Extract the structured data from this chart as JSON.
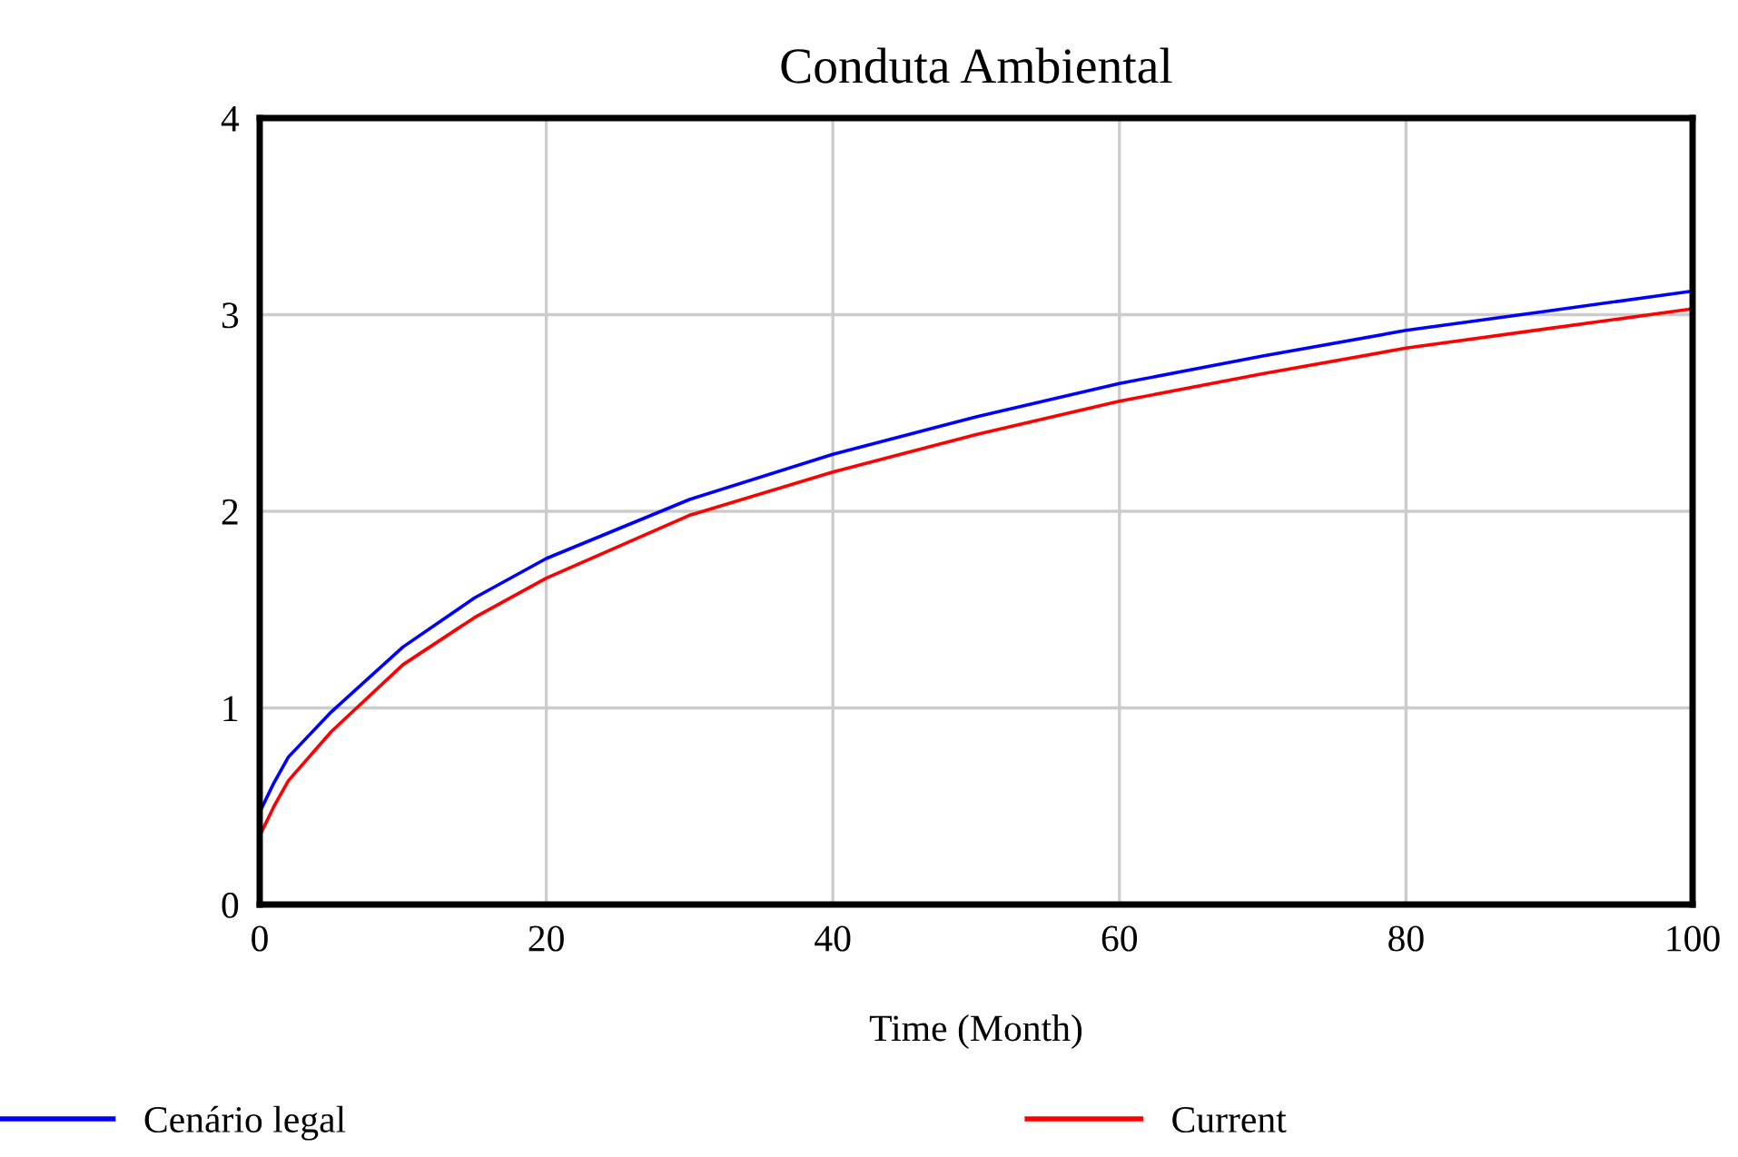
{
  "chart_data": {
    "type": "line",
    "title": "Conduta Ambiental",
    "xlabel": "Time (Month)",
    "x": [
      0,
      1,
      2,
      5,
      10,
      15,
      20,
      30,
      40,
      50,
      60,
      70,
      80,
      90,
      100
    ],
    "series": [
      {
        "name": "Cenário legal",
        "color": "#0000ff",
        "values": [
          0.47,
          0.62,
          0.75,
          0.98,
          1.31,
          1.56,
          1.76,
          2.06,
          2.29,
          2.48,
          2.65,
          2.79,
          2.92,
          3.02,
          3.12
        ]
      },
      {
        "name": "Current",
        "color": "#ff0000",
        "values": [
          0.35,
          0.5,
          0.63,
          0.88,
          1.22,
          1.46,
          1.66,
          1.98,
          2.2,
          2.39,
          2.56,
          2.7,
          2.83,
          2.93,
          3.03
        ]
      }
    ],
    "xlim": [
      0,
      100
    ],
    "xticks": [
      0,
      20,
      40,
      60,
      80,
      100
    ],
    "ylim": [
      0,
      4
    ],
    "yticks": [
      0,
      1,
      2,
      3,
      4
    ],
    "grid": true,
    "legend": "bottom",
    "line_style": "solid"
  }
}
